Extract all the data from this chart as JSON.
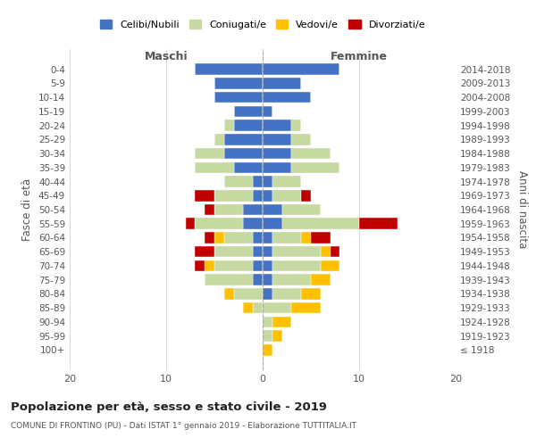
{
  "age_groups": [
    "100+",
    "95-99",
    "90-94",
    "85-89",
    "80-84",
    "75-79",
    "70-74",
    "65-69",
    "60-64",
    "55-59",
    "50-54",
    "45-49",
    "40-44",
    "35-39",
    "30-34",
    "25-29",
    "20-24",
    "15-19",
    "10-14",
    "5-9",
    "0-4"
  ],
  "birth_years": [
    "≤ 1918",
    "1919-1923",
    "1924-1928",
    "1929-1933",
    "1934-1938",
    "1939-1943",
    "1944-1948",
    "1949-1953",
    "1954-1958",
    "1959-1963",
    "1964-1968",
    "1969-1973",
    "1974-1978",
    "1979-1983",
    "1984-1988",
    "1989-1993",
    "1994-1998",
    "1999-2003",
    "2004-2008",
    "2009-2013",
    "2014-2018"
  ],
  "colors": {
    "celibi": "#4472c4",
    "coniugati": "#c5d9a0",
    "vedovi": "#ffc000",
    "divorziati": "#c00000"
  },
  "maschi": {
    "celibi": [
      0,
      0,
      0,
      0,
      0,
      1,
      1,
      1,
      1,
      2,
      2,
      1,
      1,
      3,
      4,
      4,
      3,
      3,
      5,
      5,
      7
    ],
    "coniugati": [
      0,
      0,
      0,
      1,
      3,
      5,
      4,
      4,
      3,
      5,
      3,
      4,
      3,
      4,
      3,
      1,
      1,
      0,
      0,
      0,
      0
    ],
    "vedovi": [
      0,
      0,
      0,
      1,
      1,
      0,
      1,
      0,
      1,
      0,
      0,
      0,
      0,
      0,
      0,
      0,
      0,
      0,
      0,
      0,
      0
    ],
    "divorziati": [
      0,
      0,
      0,
      0,
      0,
      0,
      1,
      2,
      1,
      1,
      1,
      2,
      0,
      0,
      0,
      0,
      0,
      0,
      0,
      0,
      0
    ]
  },
  "femmine": {
    "celibi": [
      0,
      0,
      0,
      0,
      1,
      1,
      1,
      1,
      1,
      2,
      2,
      1,
      1,
      3,
      3,
      3,
      3,
      1,
      5,
      4,
      8
    ],
    "coniugati": [
      0,
      1,
      1,
      3,
      3,
      4,
      5,
      5,
      3,
      8,
      4,
      3,
      3,
      5,
      4,
      2,
      1,
      0,
      0,
      0,
      0
    ],
    "vedovi": [
      1,
      1,
      2,
      3,
      2,
      2,
      2,
      1,
      1,
      0,
      0,
      0,
      0,
      0,
      0,
      0,
      0,
      0,
      0,
      0,
      0
    ],
    "divorziati": [
      0,
      0,
      0,
      0,
      0,
      0,
      0,
      1,
      2,
      4,
      0,
      1,
      0,
      0,
      0,
      0,
      0,
      0,
      0,
      0,
      0
    ]
  },
  "xlim": [
    -20,
    20
  ],
  "xticks": [
    -20,
    -10,
    0,
    10,
    20
  ],
  "xticklabels": [
    "20",
    "10",
    "0",
    "10",
    "20"
  ],
  "title": "Popolazione per età, sesso e stato civile - 2019",
  "subtitle": "COMUNE DI FRONTINO (PU) - Dati ISTAT 1° gennaio 2019 - Elaborazione TUTTITALIA.IT",
  "ylabel": "Fasce di età",
  "ylabel2": "Anni di nascita",
  "xlabel_maschi": "Maschi",
  "xlabel_femmine": "Femmine",
  "legend_labels": [
    "Celibi/Nubili",
    "Coniugati/e",
    "Vedovi/e",
    "Divorziati/e"
  ],
  "background_color": "#ffffff",
  "grid_color": "#cccccc",
  "bar_height": 0.8
}
